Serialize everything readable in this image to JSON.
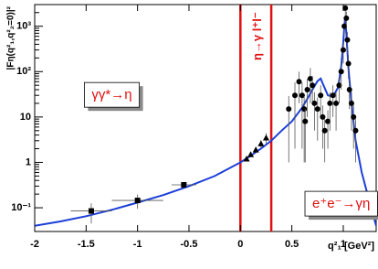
{
  "chart_data": {
    "type": "scatter",
    "y_label": "|Fη(q²₁,q²₂=0)|²",
    "x_label": "q²₁ [GeV²]",
    "log_y": true,
    "xlim": [
      -2,
      1.32
    ],
    "ylim": [
      0.03,
      3000
    ],
    "xticks": [
      -2,
      -1.5,
      -1,
      -0.5,
      0,
      0.5,
      1
    ],
    "yticks": [
      {
        "value": 0.1,
        "label": "10⁻¹"
      },
      1,
      10,
      {
        "value": 100,
        "label": "10²"
      },
      {
        "value": 1000,
        "label": "10³"
      }
    ],
    "vlines": {
      "x": [
        0,
        0.3
      ],
      "color": "#e01010"
    },
    "annotations": [
      {
        "text": "γγ*→η",
        "x": -1.25,
        "y": 30,
        "boxed": true
      },
      {
        "text": "e⁺e⁻→γη",
        "x": 0.98,
        "y": 0.12,
        "boxed": true
      },
      {
        "text": "η→γ l⁺l⁻",
        "x": 0.17,
        "y": 600,
        "rotate": true
      }
    ],
    "series": [
      {
        "marker": "line",
        "color": "#1c3fd8",
        "x": [
          -2,
          -1.75,
          -1.5,
          -1.25,
          -1,
          -0.75,
          -0.5,
          -0.25,
          0,
          0.1,
          0.2,
          0.3,
          0.4,
          0.5,
          0.6,
          0.65,
          0.7,
          0.75,
          0.78,
          0.8,
          0.85,
          0.9,
          0.95,
          0.98,
          1.0,
          1.01,
          1.02,
          1.03,
          1.05,
          1.08,
          1.12,
          1.18,
          1.25,
          1.32
        ],
        "values": [
          0.04,
          0.05,
          0.065,
          0.09,
          0.13,
          0.19,
          0.3,
          0.5,
          1,
          1.4,
          2,
          3,
          5,
          8,
          16,
          25,
          40,
          62,
          70,
          55,
          30,
          28,
          45,
          130,
          450,
          1000,
          1500,
          700,
          120,
          20,
          3,
          0.6,
          0.15,
          0.04
        ]
      },
      {
        "marker": "square",
        "color": "#000000",
        "x": [
          -1.45,
          -1.0,
          -0.55
        ],
        "values": [
          0.085,
          0.145,
          0.32
        ],
        "errors": [
          0.04,
          0.05,
          0.04
        ],
        "xerrors": [
          0.2,
          0.25,
          0.12
        ]
      },
      {
        "marker": "triangle",
        "color": "#000000",
        "x": [
          0.06,
          0.1,
          0.15,
          0.2,
          0.25
        ],
        "values": [
          1.2,
          1.5,
          1.9,
          2.6,
          3.5
        ],
        "errors": [
          0.15,
          0.2,
          0.3,
          0.5,
          0.9
        ]
      },
      {
        "marker": "circle",
        "color": "#000000",
        "x": [
          0.47,
          0.53,
          0.57,
          0.6,
          0.62,
          0.63,
          0.65,
          0.68,
          0.7,
          0.72,
          0.75,
          0.78,
          0.8,
          0.82,
          0.85,
          0.87,
          0.9,
          0.93,
          0.96,
          0.98,
          1.0,
          1.01,
          1.02,
          1.03,
          1.04,
          1.05,
          1.06,
          1.08,
          1.1,
          1.12
        ],
        "values": [
          15,
          30,
          60,
          30,
          15,
          8,
          40,
          70,
          50,
          20,
          15,
          30,
          10,
          5,
          8,
          20,
          30,
          20,
          50,
          100,
          300,
          1000,
          2500,
          1500,
          500,
          150,
          40,
          20,
          10,
          5
        ],
        "errors": [
          14,
          28,
          40,
          28,
          14,
          7,
          30,
          50,
          30,
          15,
          12,
          20,
          8,
          4,
          6,
          15,
          20,
          15,
          30,
          60,
          150,
          400,
          800,
          600,
          250,
          80,
          25,
          15,
          8,
          4
        ]
      }
    ]
  }
}
